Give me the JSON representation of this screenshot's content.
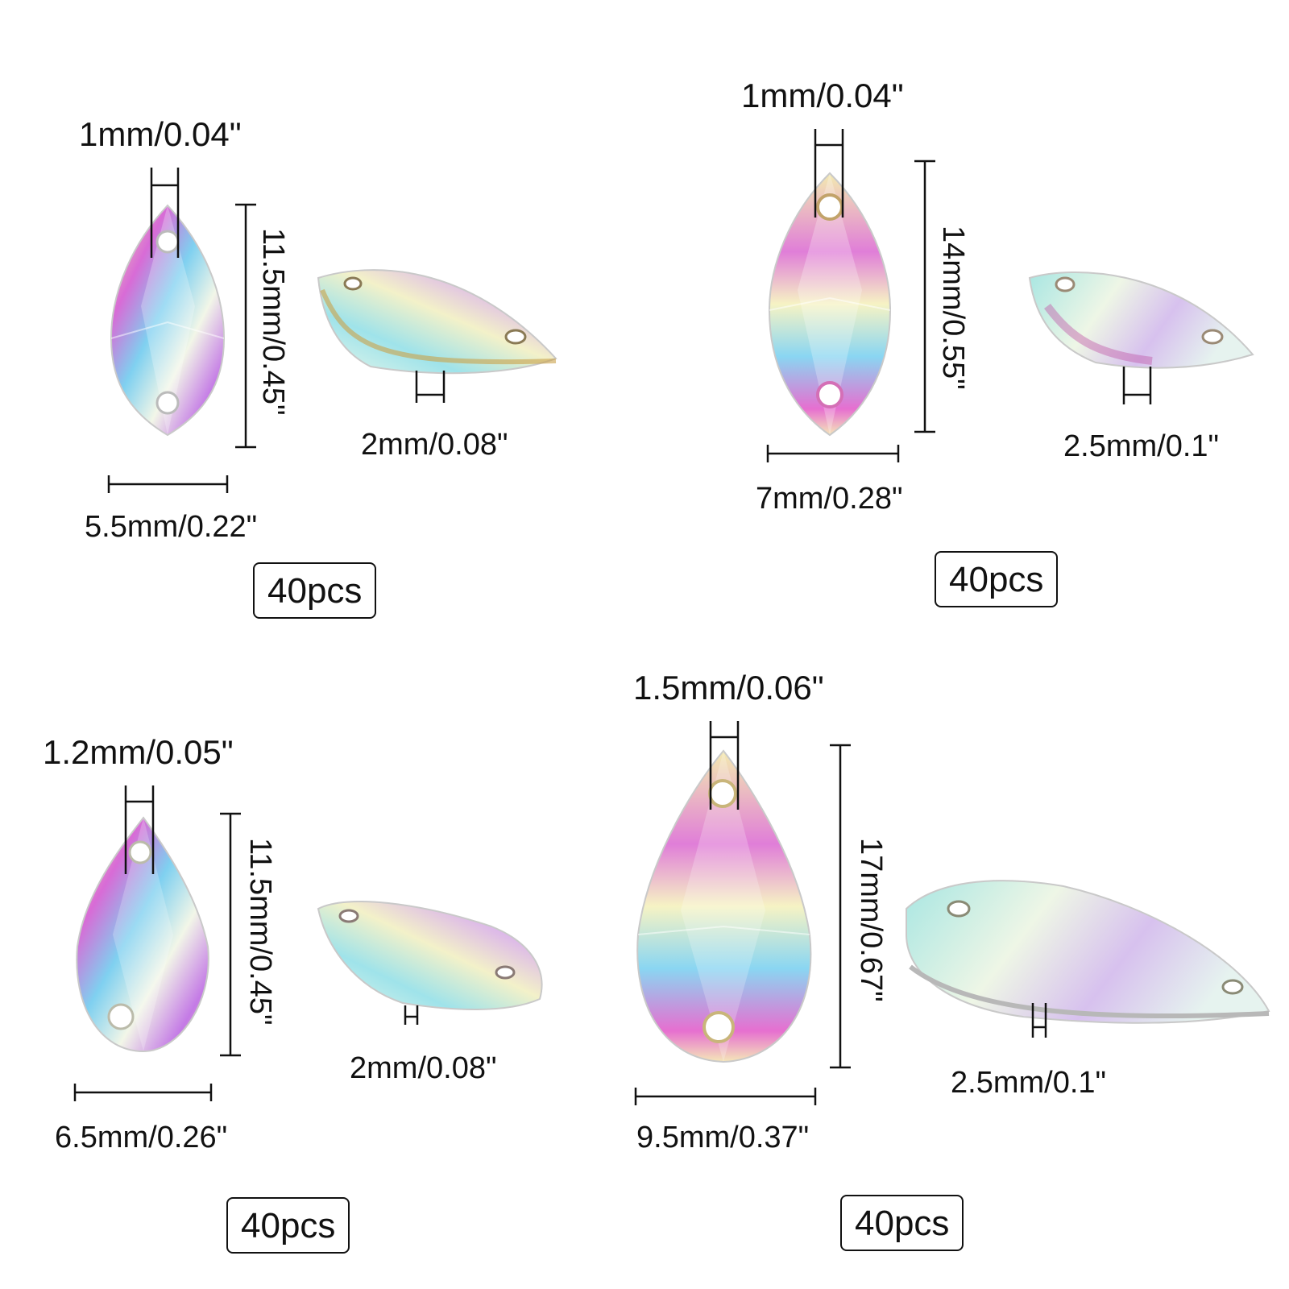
{
  "colors": {
    "line": "#111111",
    "crystal_base": "#e8f2ef"
  },
  "panels": [
    {
      "shape": "navette",
      "hole_width": "1mm/0.04\"",
      "length": "11.5mm/0.45\"",
      "width": "5.5mm/0.22\"",
      "thickness": "2mm/0.08\"",
      "quantity": "40pcs"
    },
    {
      "shape": "navette",
      "hole_width": "1mm/0.04\"",
      "length": "14mm/0.55\"",
      "width": "7mm/0.28\"",
      "thickness": "2.5mm/0.1\"",
      "quantity": "40pcs"
    },
    {
      "shape": "teardrop",
      "hole_width": "1.2mm/0.05\"",
      "length": "11.5mm/0.45\"",
      "width": "6.5mm/0.26\"",
      "thickness": "2mm/0.08\"",
      "quantity": "40pcs"
    },
    {
      "shape": "teardrop",
      "hole_width": "1.5mm/0.06\"",
      "length": "17mm/0.67\"",
      "width": "9.5mm/0.37\"",
      "thickness": "2.5mm/0.1\"",
      "quantity": "40pcs"
    }
  ]
}
